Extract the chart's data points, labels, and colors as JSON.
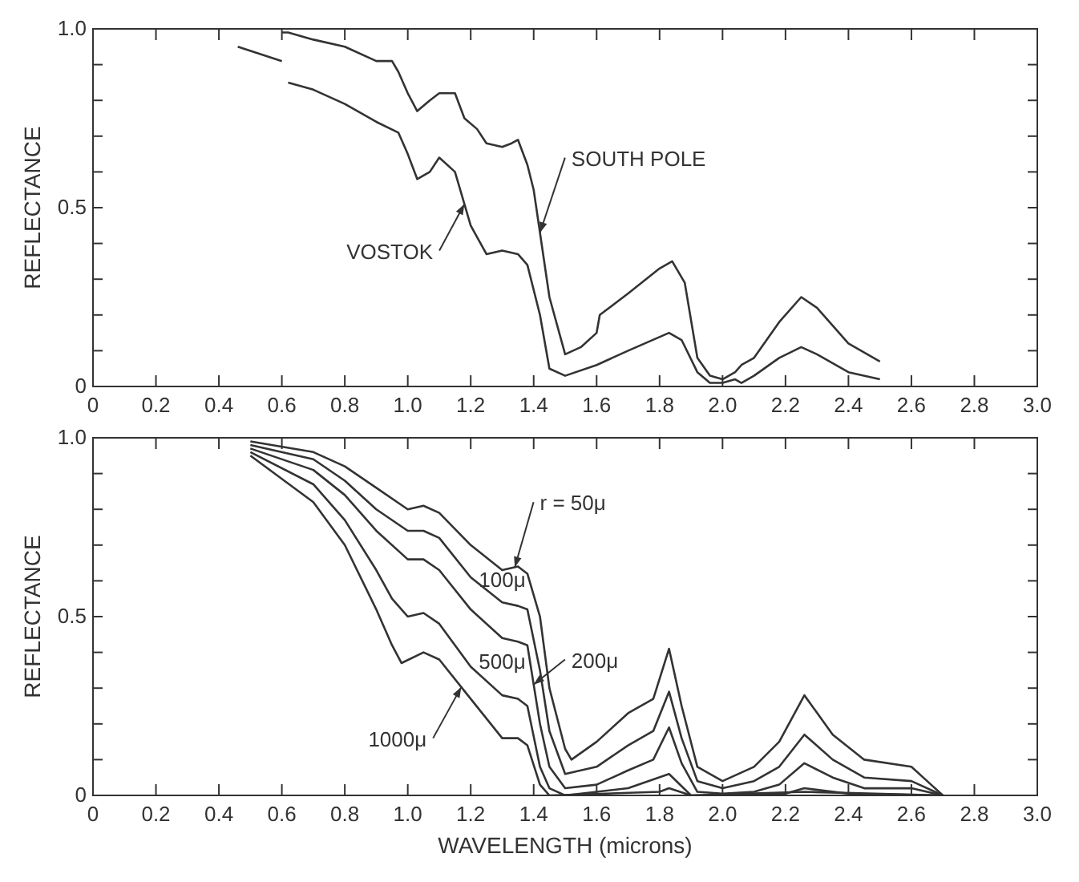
{
  "chart_data": [
    {
      "type": "line",
      "ylabel": "REFLECTANCE",
      "xlim": [
        0,
        3
      ],
      "ylim": [
        0,
        1
      ],
      "xticks": [
        {
          "value": 0,
          "label": "0"
        },
        0.2,
        0.4,
        0.6,
        0.8,
        {
          "value": 1,
          "label": "1.0"
        },
        1.2,
        1.4,
        1.6,
        1.8,
        {
          "value": 2,
          "label": "2.0"
        },
        2.2,
        2.4,
        2.6,
        2.8,
        {
          "value": 3,
          "label": "3.0"
        }
      ],
      "yticks": [
        {
          "value": 0,
          "label": "0"
        },
        {
          "value": 0.1,
          "label": null
        },
        {
          "value": 0.2,
          "label": null
        },
        {
          "value": 0.3,
          "label": null
        },
        {
          "value": 0.4,
          "label": null
        },
        0.5,
        {
          "value": 0.6,
          "label": null
        },
        {
          "value": 0.7,
          "label": null
        },
        {
          "value": 0.8,
          "label": null
        },
        {
          "value": 0.9,
          "label": null
        },
        {
          "value": 1,
          "label": "1.0"
        }
      ],
      "series": [
        {
          "name": "VOSTOK",
          "color": "#333333",
          "x": [
            0.46,
            0.6,
            0.61,
            0.62,
            0.7,
            0.8,
            0.9,
            0.97,
            1.0,
            1.03,
            1.07,
            1.1,
            1.15,
            1.2,
            1.25,
            1.3,
            1.35,
            1.38,
            1.42,
            1.45,
            1.5,
            1.6,
            1.7,
            1.83,
            1.87,
            1.92,
            1.96,
            2.0,
            2.04,
            2.06,
            2.1,
            2.18,
            2.25,
            2.3,
            2.4,
            2.5
          ],
          "values": [
            0.95,
            0.91,
            null,
            0.85,
            0.83,
            0.79,
            0.74,
            0.71,
            0.65,
            0.58,
            0.6,
            0.64,
            0.6,
            0.45,
            0.37,
            0.38,
            0.37,
            0.34,
            0.2,
            0.05,
            0.03,
            0.06,
            0.1,
            0.15,
            0.13,
            0.04,
            0.01,
            0.01,
            0.02,
            0.01,
            0.03,
            0.08,
            0.11,
            0.09,
            0.04,
            0.02
          ]
        },
        {
          "name": "SOUTH POLE",
          "color": "#333333",
          "x": [
            0.6,
            0.62,
            0.7,
            0.8,
            0.9,
            0.95,
            0.97,
            1.0,
            1.03,
            1.07,
            1.1,
            1.15,
            1.18,
            1.22,
            1.25,
            1.3,
            1.33,
            1.35,
            1.38,
            1.4,
            1.45,
            1.5,
            1.55,
            1.6,
            1.61,
            1.7,
            1.8,
            1.84,
            1.88,
            1.92,
            1.96,
            2.0,
            2.04,
            2.06,
            2.1,
            2.18,
            2.25,
            2.3,
            2.4,
            2.5
          ],
          "values": [
            0.99,
            0.99,
            0.97,
            0.95,
            0.91,
            0.91,
            0.88,
            0.82,
            0.77,
            0.8,
            0.82,
            0.82,
            0.75,
            0.72,
            0.68,
            0.67,
            0.68,
            0.69,
            0.62,
            0.55,
            0.25,
            0.09,
            0.11,
            0.15,
            0.2,
            0.26,
            0.33,
            0.35,
            0.29,
            0.08,
            0.03,
            0.02,
            0.04,
            0.06,
            0.08,
            0.18,
            0.25,
            0.22,
            0.12,
            0.07
          ]
        }
      ]
    },
    {
      "type": "line",
      "xlabel": "WAVELENGTH (microns)",
      "ylabel": "REFLECTANCE",
      "xlim": [
        0,
        3
      ],
      "ylim": [
        0,
        1
      ],
      "xticks": [
        {
          "value": 0,
          "label": "0"
        },
        0.2,
        0.4,
        0.6,
        0.8,
        {
          "value": 1,
          "label": "1.0"
        },
        1.2,
        1.4,
        1.6,
        1.8,
        {
          "value": 2,
          "label": "2.0"
        },
        2.2,
        2.4,
        2.6,
        2.8,
        {
          "value": 3,
          "label": "3.0"
        }
      ],
      "yticks": [
        {
          "value": 0,
          "label": "0"
        },
        {
          "value": 0.1,
          "label": null
        },
        {
          "value": 0.2,
          "label": null
        },
        {
          "value": 0.3,
          "label": null
        },
        {
          "value": 0.4,
          "label": null
        },
        0.5,
        {
          "value": 0.6,
          "label": null
        },
        {
          "value": 0.7,
          "label": null
        },
        {
          "value": 0.8,
          "label": null
        },
        {
          "value": 0.9,
          "label": null
        },
        {
          "value": 1,
          "label": "1.0"
        }
      ],
      "series": [
        {
          "name": "r = 50μ",
          "color": "#333333",
          "x": [
            0.5,
            0.7,
            0.8,
            0.9,
            1.0,
            1.05,
            1.1,
            1.2,
            1.3,
            1.35,
            1.38,
            1.42,
            1.45,
            1.5,
            1.52,
            1.6,
            1.7,
            1.78,
            1.83,
            1.87,
            1.92,
            2.0,
            2.1,
            2.18,
            2.26,
            2.35,
            2.45,
            2.6,
            2.65,
            2.7
          ],
          "values": [
            0.99,
            0.96,
            0.92,
            0.86,
            0.8,
            0.81,
            0.79,
            0.7,
            0.63,
            0.64,
            0.62,
            0.5,
            0.3,
            0.13,
            0.1,
            0.15,
            0.23,
            0.27,
            0.41,
            0.25,
            0.08,
            0.04,
            0.08,
            0.15,
            0.28,
            0.17,
            0.1,
            0.08,
            0.04,
            0
          ]
        },
        {
          "name": "100μ",
          "color": "#333333",
          "x": [
            0.5,
            0.7,
            0.8,
            0.9,
            1.0,
            1.05,
            1.1,
            1.2,
            1.3,
            1.35,
            1.38,
            1.42,
            1.45,
            1.5,
            1.6,
            1.7,
            1.78,
            1.83,
            1.87,
            1.92,
            2.0,
            2.1,
            2.18,
            2.26,
            2.35,
            2.45,
            2.6,
            2.7
          ],
          "values": [
            0.98,
            0.94,
            0.88,
            0.8,
            0.74,
            0.74,
            0.72,
            0.61,
            0.54,
            0.53,
            0.52,
            0.35,
            0.18,
            0.06,
            0.08,
            0.14,
            0.18,
            0.29,
            0.16,
            0.04,
            0.02,
            0.04,
            0.08,
            0.17,
            0.1,
            0.05,
            0.04,
            0
          ]
        },
        {
          "name": "200μ",
          "color": "#333333",
          "x": [
            0.5,
            0.7,
            0.8,
            0.9,
            1.0,
            1.05,
            1.1,
            1.2,
            1.3,
            1.35,
            1.38,
            1.42,
            1.45,
            1.5,
            1.6,
            1.7,
            1.78,
            1.83,
            1.87,
            1.92,
            2.0,
            2.1,
            2.18,
            2.26,
            2.35,
            2.45,
            2.6,
            2.7
          ],
          "values": [
            0.97,
            0.91,
            0.84,
            0.74,
            0.66,
            0.66,
            0.63,
            0.52,
            0.44,
            0.43,
            0.42,
            0.2,
            0.08,
            0.02,
            0.03,
            0.07,
            0.1,
            0.19,
            0.09,
            0.01,
            0.005,
            0.01,
            0.03,
            0.09,
            0.05,
            0.02,
            0.02,
            0
          ]
        },
        {
          "name": "500μ",
          "color": "#333333",
          "x": [
            0.5,
            0.7,
            0.8,
            0.9,
            0.95,
            1.0,
            1.05,
            1.1,
            1.2,
            1.3,
            1.35,
            1.38,
            1.42,
            1.45,
            1.5,
            1.7,
            1.83,
            1.9,
            2.2,
            2.26,
            2.4,
            2.7
          ],
          "values": [
            0.96,
            0.87,
            0.77,
            0.63,
            0.55,
            0.5,
            0.51,
            0.48,
            0.36,
            0.28,
            0.27,
            0.25,
            0.08,
            0.02,
            0,
            0.02,
            0.06,
            0,
            0.005,
            0.02,
            0.005,
            0
          ]
        },
        {
          "name": "1000μ",
          "color": "#333333",
          "x": [
            0.5,
            0.7,
            0.8,
            0.9,
            0.95,
            0.98,
            1.05,
            1.1,
            1.2,
            1.3,
            1.35,
            1.38,
            1.42,
            1.45,
            1.8,
            1.83,
            1.9,
            2.26,
            2.7
          ],
          "values": [
            0.95,
            0.82,
            0.7,
            0.52,
            0.42,
            0.37,
            0.4,
            0.38,
            0.27,
            0.16,
            0.16,
            0.14,
            0.03,
            0,
            0.01,
            0.02,
            0,
            0.01,
            0
          ]
        }
      ]
    }
  ]
}
